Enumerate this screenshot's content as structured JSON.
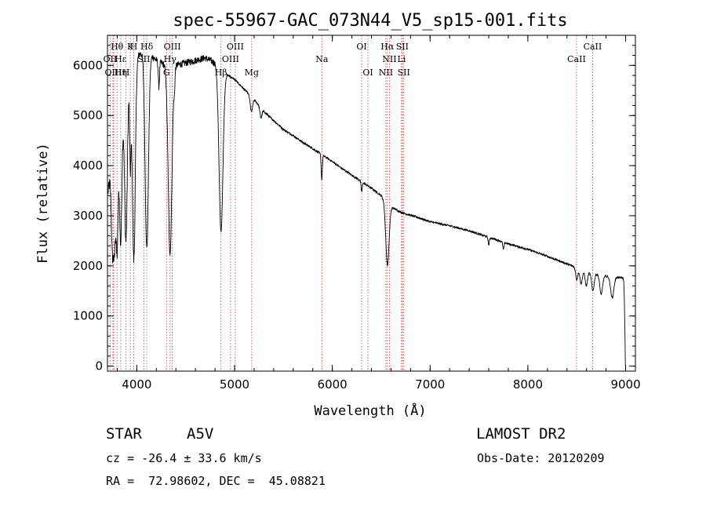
{
  "chart_data": {
    "type": "line",
    "title": "spec-55967-GAC_073N44_V5_sp15-001.fits",
    "xlabel": "Wavelength (Å)",
    "ylabel": "Flux (relative)",
    "xlim": [
      3700,
      9100
    ],
    "ylim": [
      -100,
      6600
    ],
    "xticks": [
      "4000",
      "5000",
      "6000",
      "7000",
      "8000",
      "9000"
    ],
    "yticks": [
      "0",
      "1000",
      "2000",
      "3000",
      "4000",
      "5000",
      "6000"
    ],
    "series_color": "#000000",
    "line_marker_color": "#cc0000",
    "continuum": {
      "x": [
        3700,
        3800,
        3900,
        4000,
        4100,
        4200,
        4300,
        4400,
        4500,
        4600,
        4700,
        4800,
        4900,
        5000,
        5100,
        5200,
        5300,
        5400,
        5500,
        5600,
        5700,
        5800,
        5900,
        6000,
        6100,
        6200,
        6300,
        6400,
        6500,
        6600,
        6700,
        6800,
        6900,
        7000,
        7200,
        7400,
        7600,
        7800,
        8000,
        8200,
        8400,
        8600,
        8800,
        8970
      ],
      "y": [
        3400,
        4600,
        5600,
        6200,
        6300,
        6100,
        6000,
        6000,
        6050,
        6100,
        6150,
        6050,
        5850,
        5720,
        5520,
        5320,
        5080,
        4900,
        4720,
        4600,
        4460,
        4340,
        4210,
        4080,
        3940,
        3810,
        3680,
        3550,
        3400,
        3180,
        3070,
        3010,
        2950,
        2880,
        2800,
        2700,
        2570,
        2440,
        2330,
        2190,
        2040,
        1880,
        1790,
        1760
      ]
    },
    "absorption": [
      {
        "center": 3750,
        "depth": 1600,
        "width": 10
      },
      {
        "center": 3771,
        "depth": 1800,
        "width": 10
      },
      {
        "center": 3798,
        "depth": 2300,
        "width": 11
      },
      {
        "center": 3835,
        "depth": 2500,
        "width": 12
      },
      {
        "center": 3889,
        "depth": 3000,
        "width": 14
      },
      {
        "center": 3934,
        "depth": 1700,
        "width": 7
      },
      {
        "center": 3970,
        "depth": 3900,
        "width": 15
      },
      {
        "center": 4102,
        "depth": 3950,
        "width": 17
      },
      {
        "center": 4226,
        "depth": 500,
        "width": 6
      },
      {
        "center": 4340,
        "depth": 3750,
        "width": 19
      },
      {
        "center": 4384,
        "depth": 350,
        "width": 6
      },
      {
        "center": 4861,
        "depth": 3250,
        "width": 20
      },
      {
        "center": 5172,
        "depth": 300,
        "width": 12
      },
      {
        "center": 5270,
        "depth": 200,
        "width": 10
      },
      {
        "center": 5892,
        "depth": 500,
        "width": 6
      },
      {
        "center": 6300,
        "depth": 200,
        "width": 6
      },
      {
        "center": 6563,
        "depth": 1250,
        "width": 17
      },
      {
        "center": 7600,
        "depth": 150,
        "width": 6
      },
      {
        "center": 7750,
        "depth": 150,
        "width": 6
      },
      {
        "center": 8500,
        "depth": 230,
        "width": 11
      },
      {
        "center": 8545,
        "depth": 280,
        "width": 12
      },
      {
        "center": 8598,
        "depth": 280,
        "width": 12
      },
      {
        "center": 8665,
        "depth": 340,
        "width": 13
      },
      {
        "center": 8750,
        "depth": 380,
        "width": 14
      },
      {
        "center": 8863,
        "depth": 420,
        "width": 16
      },
      {
        "center": 9000,
        "depth": 1700,
        "width": 8
      }
    ],
    "lines": [
      {
        "label": "Hθ",
        "x": 3798,
        "row": 0
      },
      {
        "label": "K",
        "x": 3934,
        "row": 0
      },
      {
        "label": "H",
        "x": 3969,
        "row": 0
      },
      {
        "label": "Hδ",
        "x": 4102,
        "row": 0
      },
      {
        "label": "OII",
        "x": 3727,
        "row": 1
      },
      {
        "label": "Hε",
        "x": 3835,
        "row": 1
      },
      {
        "label": "SII",
        "x": 4072,
        "row": 1
      },
      {
        "label": "OIII",
        "x": 4363,
        "row": 0
      },
      {
        "label": "Hγ",
        "x": 4340,
        "row": 1
      },
      {
        "label": "OIII",
        "x": 3760,
        "row": 2
      },
      {
        "label": "Hη",
        "x": 3835,
        "row": 2
      },
      {
        "label": "H",
        "x": 3889,
        "row": 2
      },
      {
        "label": "G",
        "x": 4304,
        "row": 2
      },
      {
        "label": "OIII",
        "x": 5007,
        "row": 0
      },
      {
        "label": "OIII",
        "x": 4959,
        "row": 1
      },
      {
        "label": "Hβ",
        "x": 4861,
        "row": 2
      },
      {
        "label": "Mg",
        "x": 5175,
        "row": 2
      },
      {
        "label": "Na",
        "x": 5893,
        "row": 1
      },
      {
        "label": "OI",
        "x": 6300,
        "row": 0
      },
      {
        "label": "OI",
        "x": 6364,
        "row": 2
      },
      {
        "label": "Hα",
        "x": 6563,
        "row": 0
      },
      {
        "label": "SII",
        "x": 6716,
        "row": 0
      },
      {
        "label": "NII",
        "x": 6584,
        "row": 1
      },
      {
        "label": "Li",
        "x": 6708,
        "row": 1
      },
      {
        "label": "NII",
        "x": 6548,
        "row": 2
      },
      {
        "label": "SII",
        "x": 6731,
        "row": 2
      },
      {
        "label": "CaII",
        "x": 8662,
        "row": 0
      },
      {
        "label": "CaII",
        "x": 8498,
        "row": 1
      }
    ],
    "grey_lines": [
      3727,
      3750,
      3771,
      3798,
      3835,
      3889,
      3934,
      3970,
      4102,
      4340,
      4861
    ]
  },
  "info": {
    "class_label": "STAR",
    "subclass": "A5V",
    "survey": "LAMOST DR2",
    "velocity": "cz = -26.4 ± 33.6 km/s",
    "obs_date": "Obs-Date: 20120209",
    "coords": "RA =  72.98602, DEC =  45.08821"
  }
}
